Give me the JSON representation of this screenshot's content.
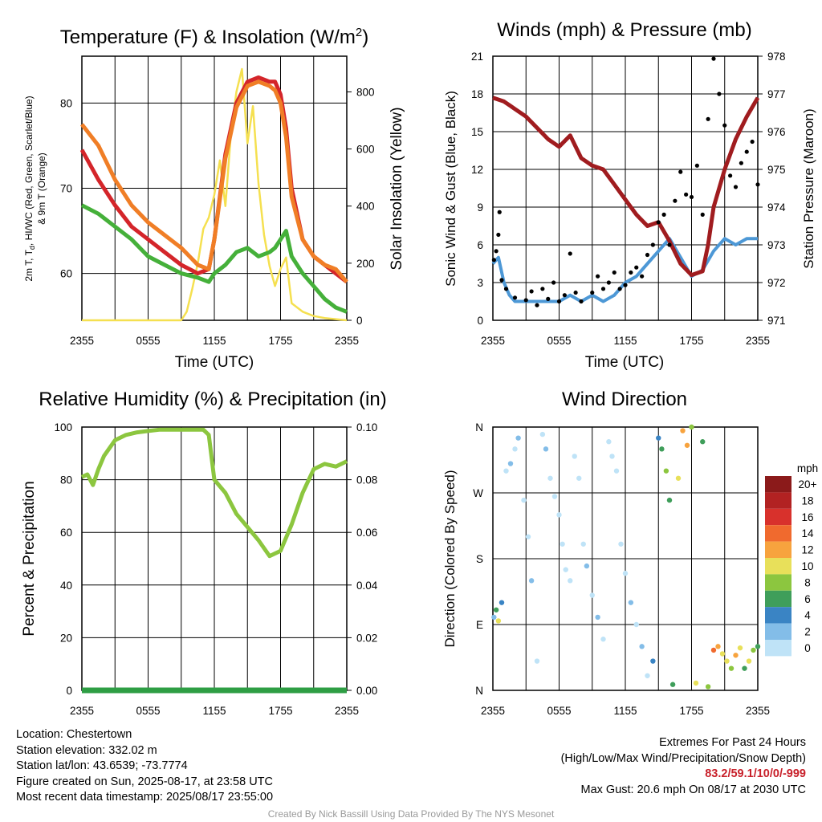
{
  "charts": {
    "temperature": {
      "title_main": "Temperature (F) & Insolation (W/m",
      "title_sup": "2",
      "title_end": ")",
      "ylabel_line1_parts": [
        "2m T, T",
        "d",
        ", HI/WC (Red, Green, Scarlet/Blue)"
      ],
      "ylabel_line2": "& 9m T (Orange)",
      "y2label": "Solar Insolation (Yellow)",
      "xlabel": "Time (UTC)"
    },
    "winds": {
      "title": "Winds (mph) & Pressure (mb)",
      "ylabel": "Sonic Wind & Gust (Blue, Black)",
      "y2label": "Station Pressure (Maroon)",
      "xlabel": "Time (UTC)"
    },
    "humidity": {
      "title": "Relative Humidity (%) & Precipitation (in)",
      "ylabel": "Percent & Precipitation"
    },
    "direction": {
      "title": "Wind Direction",
      "ylabel": "Direction (Colored By Speed)",
      "legend_title": "mph"
    }
  },
  "chart_data": [
    {
      "type": "line",
      "name": "temperature",
      "x_ticks": [
        "2355",
        "0555",
        "1155",
        "1755",
        "2355"
      ],
      "x": [
        0,
        1.5,
        3,
        4.5,
        6,
        7.5,
        9,
        10.5,
        11.5,
        12,
        13,
        14,
        15,
        16,
        17,
        17.5,
        18,
        18.5,
        19,
        20,
        21,
        22,
        23,
        24
      ],
      "ylim": [
        54.5,
        85.5
      ],
      "yticks": [
        60,
        70,
        80
      ],
      "y2lim": [
        0,
        925
      ],
      "y2ticks": [
        0,
        200,
        400,
        600,
        800
      ],
      "series": [
        {
          "color": "#d4252a",
          "values": [
            74.5,
            71,
            68,
            65.5,
            64,
            62.5,
            61,
            60,
            60.5,
            64,
            74,
            80,
            82.5,
            83,
            82.5,
            82.5,
            81,
            77,
            70,
            64,
            62,
            61,
            60,
            59
          ]
        },
        {
          "color": "#f07e26",
          "values": [
            77.5,
            75,
            71,
            68,
            66,
            64.5,
            63,
            61,
            60.5,
            64,
            73.5,
            79.5,
            82,
            82.5,
            82,
            81.5,
            80,
            76,
            69,
            64,
            62,
            61,
            60.5,
            59
          ]
        },
        {
          "color": "#45b03a",
          "values": [
            68,
            67,
            65.5,
            64,
            62,
            61,
            60,
            59.5,
            59,
            60,
            61,
            62.5,
            63,
            62,
            62.5,
            63,
            64,
            65,
            62,
            60,
            58.5,
            57,
            56,
            55.5
          ]
        }
      ],
      "insolation": {
        "color": "#f5e050",
        "x": [
          0,
          8,
          9,
          9.5,
          10,
          10.5,
          11,
          11.5,
          12,
          12.5,
          13,
          13.5,
          14,
          14.5,
          15,
          15.5,
          16,
          16.5,
          17,
          17.5,
          18,
          18.5,
          19,
          20,
          21,
          22,
          24
        ],
        "values": [
          0,
          0,
          0,
          30,
          110,
          200,
          320,
          360,
          440,
          560,
          400,
          650,
          800,
          880,
          620,
          750,
          480,
          300,
          190,
          120,
          180,
          220,
          60,
          30,
          15,
          8,
          0
        ]
      }
    },
    {
      "type": "scatter",
      "name": "winds",
      "x_ticks": [
        "2355",
        "0555",
        "1155",
        "1755",
        "2355"
      ],
      "ylim": [
        0,
        21
      ],
      "yticks": [
        0,
        3,
        6,
        9,
        12,
        15,
        18,
        21
      ],
      "y2lim": [
        971,
        978
      ],
      "y2ticks": [
        971,
        972,
        973,
        974,
        975,
        976,
        977,
        978
      ],
      "wind": {
        "color": "#4d98d6",
        "x": [
          0,
          0.5,
          1,
          1.5,
          2,
          3,
          4,
          5,
          6,
          7,
          8,
          9,
          10,
          11,
          12,
          13,
          14,
          15,
          16,
          17,
          18,
          19,
          20,
          21,
          22,
          23,
          24
        ],
        "values": [
          4.5,
          5,
          3,
          2,
          1.5,
          1.5,
          1.5,
          1.5,
          1.5,
          2,
          1.5,
          2,
          1.5,
          2,
          3,
          3.5,
          4.5,
          5.5,
          6.5,
          5,
          3.5,
          4,
          5.5,
          6.5,
          6,
          6.5,
          6.5
        ]
      },
      "gust_color": "#000000",
      "gust": [
        [
          0.1,
          4.8
        ],
        [
          0.3,
          5.5
        ],
        [
          0.5,
          6.8
        ],
        [
          0.6,
          8.6
        ],
        [
          0.8,
          3.2
        ],
        [
          1.2,
          2.5
        ],
        [
          2,
          1.8
        ],
        [
          3,
          1.6
        ],
        [
          3.5,
          2.3
        ],
        [
          4,
          1.2
        ],
        [
          4.5,
          2.5
        ],
        [
          5,
          1.7
        ],
        [
          5.5,
          3
        ],
        [
          6,
          1.5
        ],
        [
          6.5,
          2
        ],
        [
          7,
          5.3
        ],
        [
          7.5,
          2.2
        ],
        [
          8,
          1.5
        ],
        [
          9,
          2.2
        ],
        [
          9.5,
          3.5
        ],
        [
          10,
          2.5
        ],
        [
          10.5,
          3
        ],
        [
          11,
          3.8
        ],
        [
          11.5,
          2.5
        ],
        [
          12,
          2.8
        ],
        [
          12.5,
          3.8
        ],
        [
          13,
          4.2
        ],
        [
          13.5,
          3.5
        ],
        [
          14,
          5.2
        ],
        [
          14.5,
          6
        ],
        [
          15,
          7.8
        ],
        [
          15.5,
          8.4
        ],
        [
          16,
          6
        ],
        [
          16.5,
          9.5
        ],
        [
          17,
          11.8
        ],
        [
          17.5,
          10
        ],
        [
          18,
          9.8
        ],
        [
          18.5,
          12.3
        ],
        [
          19,
          8.4
        ],
        [
          19.5,
          16
        ],
        [
          20,
          20.8
        ],
        [
          20.5,
          18
        ],
        [
          21,
          15.5
        ],
        [
          21.5,
          11.5
        ],
        [
          22,
          10.6
        ],
        [
          22.5,
          12.5
        ],
        [
          23,
          13.4
        ],
        [
          23.5,
          14.2
        ],
        [
          24,
          10.8
        ]
      ],
      "pressure": {
        "color": "#a01c1f",
        "x": [
          0,
          1,
          2,
          3,
          4,
          5,
          6,
          7,
          8,
          9,
          10,
          11,
          12,
          13,
          14,
          15,
          16,
          17,
          18,
          19,
          19.5,
          20,
          21,
          22,
          23,
          24
        ],
        "values": [
          976.9,
          976.8,
          976.6,
          976.4,
          976.1,
          975.8,
          975.6,
          975.9,
          975.3,
          975.1,
          975.0,
          974.6,
          974.2,
          973.8,
          973.5,
          973.6,
          973.1,
          972.5,
          972.2,
          972.3,
          973.0,
          974.0,
          975.0,
          975.8,
          976.4,
          976.9
        ]
      }
    },
    {
      "type": "line",
      "name": "humidity",
      "x_ticks": [
        "2355",
        "0555",
        "1155",
        "1755",
        "2355"
      ],
      "ylim": [
        0,
        100
      ],
      "yticks": [
        0,
        20,
        40,
        60,
        80,
        100
      ],
      "y2lim": [
        0,
        0.1
      ],
      "y2ticks": [
        "0.00",
        "0.02",
        "0.04",
        "0.06",
        "0.08",
        "0.10"
      ],
      "series": [
        {
          "color": "#8cc63f",
          "x": [
            0,
            0.5,
            1,
            1.5,
            2,
            3,
            4,
            5,
            6,
            7,
            8,
            9,
            10,
            11,
            11.5,
            12,
            13,
            14,
            15,
            16,
            17,
            18,
            19,
            20,
            21,
            22,
            23,
            24
          ],
          "values": [
            81,
            82,
            78,
            84,
            89,
            95,
            97,
            98,
            98.5,
            99,
            99,
            99,
            99,
            99,
            97,
            80,
            75,
            67,
            62,
            57,
            51,
            53,
            63,
            75,
            84,
            86,
            85,
            87
          ]
        },
        {
          "color": "#2e9e44",
          "x": [
            0,
            24
          ],
          "values": [
            0,
            0
          ]
        }
      ]
    },
    {
      "type": "scatter",
      "name": "wind direction",
      "x_ticks": [
        "2355",
        "0555",
        "1155",
        "1755",
        "2355"
      ],
      "y_ticks": [
        "N",
        "E",
        "S",
        "W",
        "N"
      ],
      "ylim": [
        0,
        360
      ],
      "legend_labels": [
        "20+",
        "18",
        "16",
        "14",
        "12",
        "10",
        "8",
        "6",
        "4",
        "2",
        "0"
      ],
      "legend_colors": [
        "#8b1a1a",
        "#b22222",
        "#d8312c",
        "#f06a2e",
        "#f7a33e",
        "#e8e05a",
        "#8cc63f",
        "#3f9e5a",
        "#3a84c4",
        "#83bde8",
        "#bfe3f7"
      ],
      "points": [
        [
          0.1,
          100,
          1
        ],
        [
          0.3,
          110,
          3
        ],
        [
          0.5,
          95,
          5
        ],
        [
          0.8,
          120,
          2
        ],
        [
          1.2,
          300,
          0
        ],
        [
          1.6,
          310,
          1
        ],
        [
          2,
          330,
          0
        ],
        [
          2.3,
          345,
          1
        ],
        [
          2.8,
          260,
          0
        ],
        [
          3.2,
          210,
          0
        ],
        [
          3.5,
          150,
          1
        ],
        [
          4,
          40,
          0
        ],
        [
          4.5,
          350,
          0
        ],
        [
          4.8,
          330,
          1
        ],
        [
          5.2,
          290,
          0
        ],
        [
          5.6,
          265,
          0
        ],
        [
          6,
          240,
          0
        ],
        [
          6.3,
          200,
          0
        ],
        [
          6.6,
          165,
          0
        ],
        [
          7,
          150,
          0
        ],
        [
          7.4,
          320,
          0
        ],
        [
          7.8,
          290,
          0
        ],
        [
          8.2,
          200,
          0
        ],
        [
          8.5,
          170,
          1
        ],
        [
          9,
          130,
          0
        ],
        [
          9.5,
          100,
          1
        ],
        [
          10,
          70,
          0
        ],
        [
          10.5,
          340,
          0
        ],
        [
          10.8,
          320,
          0
        ],
        [
          11.2,
          300,
          0
        ],
        [
          11.6,
          200,
          0
        ],
        [
          12,
          160,
          0
        ],
        [
          12.5,
          120,
          1
        ],
        [
          13,
          90,
          0
        ],
        [
          13.5,
          60,
          1
        ],
        [
          14,
          20,
          0
        ],
        [
          14.5,
          40,
          2
        ],
        [
          15,
          345,
          2
        ],
        [
          15.3,
          330,
          3
        ],
        [
          15.7,
          300,
          4
        ],
        [
          16,
          260,
          3
        ],
        [
          16.3,
          8,
          3
        ],
        [
          16.8,
          290,
          5
        ],
        [
          17.2,
          355,
          6
        ],
        [
          17.6,
          335,
          6
        ],
        [
          18,
          360,
          4
        ],
        [
          18.4,
          10,
          5
        ],
        [
          19,
          340,
          3
        ],
        [
          19.5,
          5,
          4
        ],
        [
          20,
          55,
          7
        ],
        [
          20.4,
          60,
          6
        ],
        [
          20.8,
          50,
          5
        ],
        [
          21.2,
          40,
          5
        ],
        [
          21.6,
          30,
          4
        ],
        [
          22,
          48,
          6
        ],
        [
          22.4,
          58,
          5
        ],
        [
          22.8,
          30,
          3
        ],
        [
          23.2,
          40,
          5
        ],
        [
          23.6,
          55,
          4
        ],
        [
          24,
          60,
          3
        ]
      ]
    }
  ],
  "info": {
    "location": "Location: Chestertown",
    "elevation": "Station elevation: 332.02 m",
    "latlon": "Station lat/lon: 43.6539; -73.7774",
    "created": "Figure created on Sun, 2025-08-17, at 23:58 UTC",
    "recent": "Most recent data timestamp: 2025/08/17 23:55:00",
    "extremes_title": "Extremes For Past 24 Hours",
    "extremes_desc": "(High/Low/Max Wind/Precipitation/Snow Depth)",
    "extremes_values": "83.2/59.1/10/0/-999",
    "max_gust": "Max Gust: 20.6 mph On 08/17 at 2030 UTC",
    "credit": "Created By Nick Bassill Using Data Provided By The NYS Mesonet"
  }
}
